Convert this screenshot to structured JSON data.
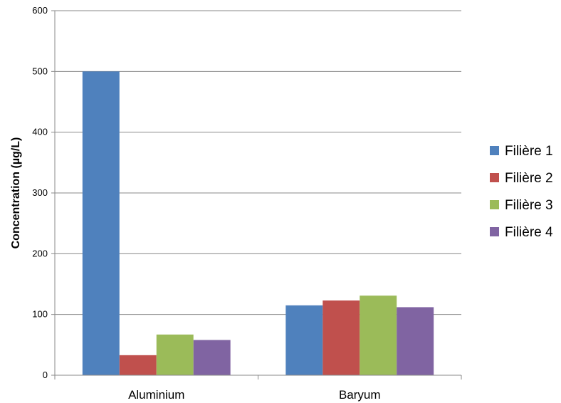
{
  "chart_data": {
    "type": "bar",
    "categories": [
      "Aluminium",
      "Baryum"
    ],
    "series": [
      {
        "name": "Filière 1",
        "values": [
          500,
          115
        ],
        "color": "#4F81BD"
      },
      {
        "name": "Filière 2",
        "values": [
          33,
          123
        ],
        "color": "#C0504D"
      },
      {
        "name": "Filière 3",
        "values": [
          67,
          131
        ],
        "color": "#9BBB59"
      },
      {
        "name": "Filière 4",
        "values": [
          58,
          112
        ],
        "color": "#8064A2"
      }
    ],
    "title": "",
    "xlabel": "",
    "ylabel": "Concentration (µg/L)",
    "ylim": [
      0,
      600
    ],
    "yticks": [
      0,
      100,
      200,
      300,
      400,
      500,
      600
    ],
    "grid": true,
    "legend_position": "right"
  }
}
